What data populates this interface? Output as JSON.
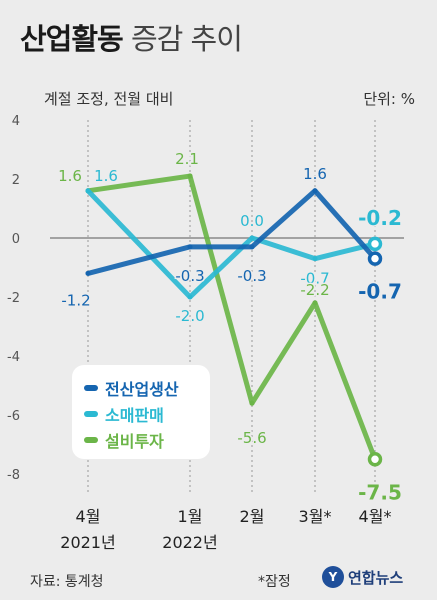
{
  "header": {
    "title_bold": "산업활동",
    "title_rest": "증감 추이",
    "subtitle": "계절 조정, 전월 대비",
    "unit": "단위: %"
  },
  "legend": [
    {
      "label": "전산업생산",
      "color": "#1565b0"
    },
    {
      "label": "소매판매",
      "color": "#2bb9d2"
    },
    {
      "label": "설비투자",
      "color": "#6bb548"
    }
  ],
  "footer": {
    "source": "자료: 통계청",
    "note": "*잠정",
    "logo_text": "연합뉴스",
    "logo_mark": "Y"
  },
  "chart_data": {
    "type": "line",
    "categories": [
      "4월\n2021년",
      "1월\n2022년",
      "2월",
      "3월*",
      "4월*"
    ],
    "ylim": [
      -8,
      4
    ],
    "yticks": [
      4,
      2,
      0,
      -2,
      -4,
      -6,
      -8
    ],
    "series": [
      {
        "name": "전산업생산",
        "color": "#1565b0",
        "values": [
          -1.2,
          -0.3,
          -0.3,
          1.6,
          -0.7
        ],
        "labels": [
          "-1.2",
          "-0.3",
          "-0.3",
          "1.6",
          "-0.7"
        ]
      },
      {
        "name": "소매판매",
        "color": "#2bb9d2",
        "values": [
          1.6,
          -2.0,
          0.0,
          -0.7,
          -0.2
        ],
        "labels": [
          "1.6",
          "-2.0",
          "0.0",
          "-0.7",
          "-0.2"
        ]
      },
      {
        "name": "설비투자",
        "color": "#6bb548",
        "values": [
          1.6,
          2.1,
          -5.6,
          -2.2,
          -7.5
        ],
        "labels": [
          "1.6",
          "2.1",
          "-5.6",
          "-2.2",
          "-7.5"
        ]
      }
    ]
  }
}
